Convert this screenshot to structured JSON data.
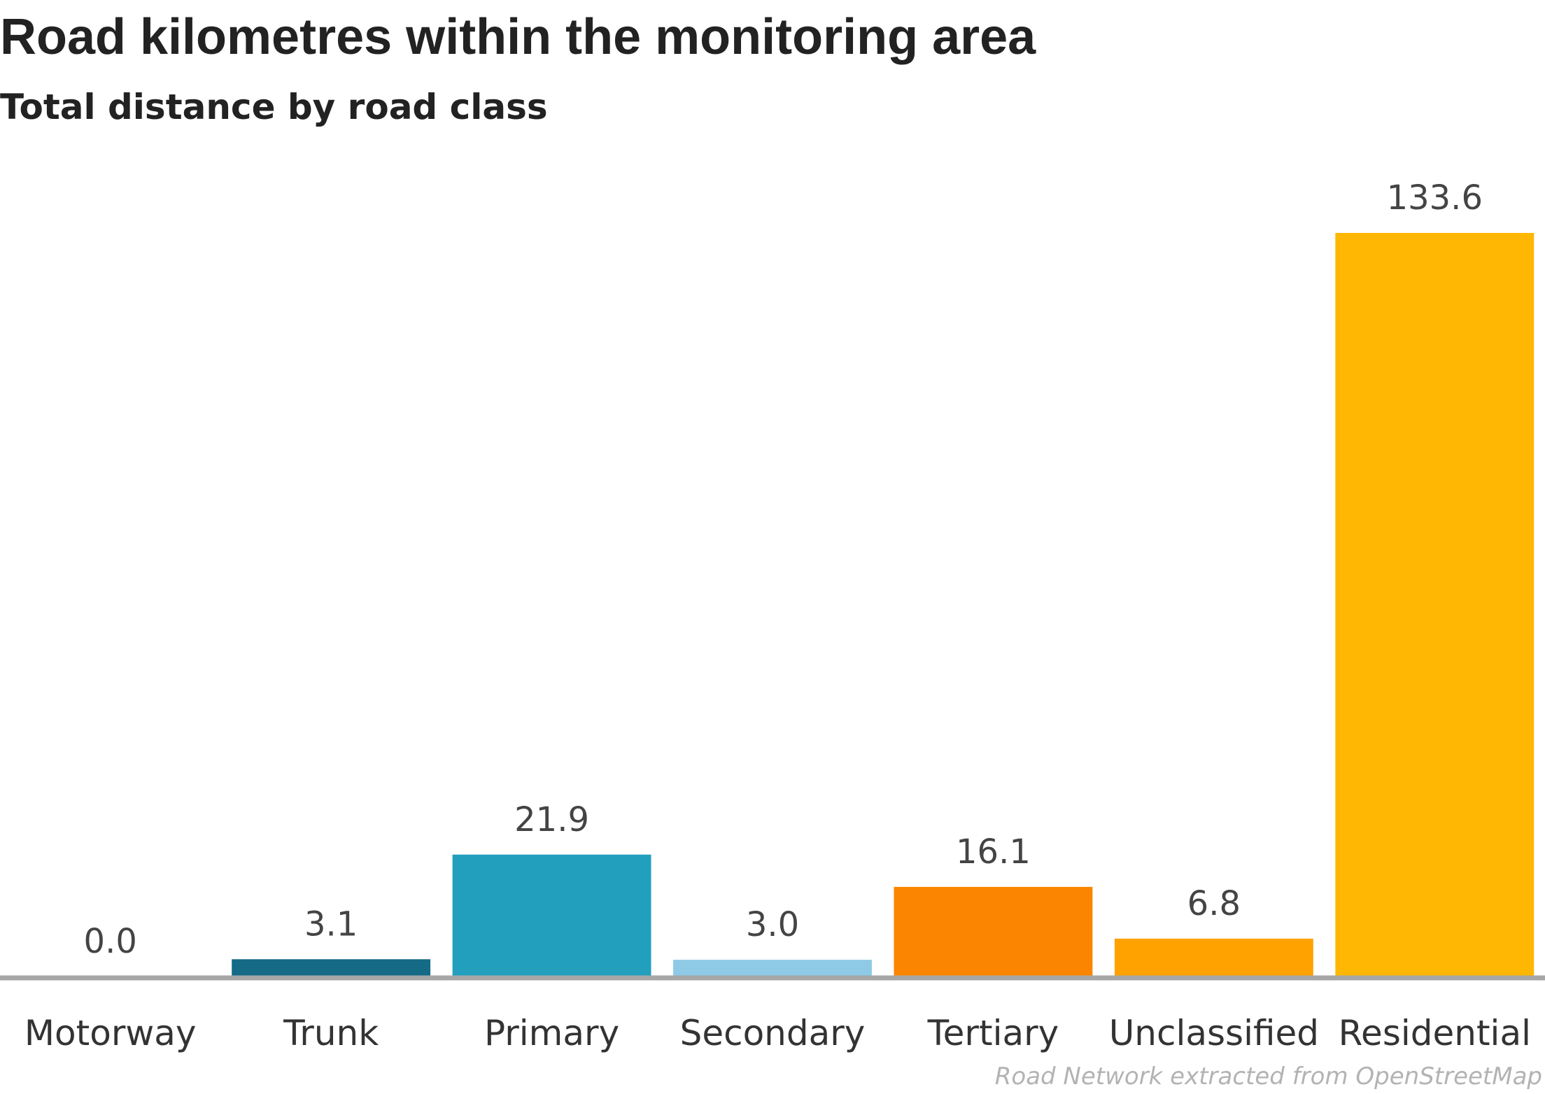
{
  "chart_data": {
    "type": "bar",
    "title": "Road kilometres within the monitoring area",
    "subtitle": "Total distance by road class",
    "caption": "Road Network extracted from OpenStreetMap",
    "categories": [
      "Motorway",
      "Trunk",
      "Primary",
      "Secondary",
      "Tertiary",
      "Unclassified",
      "Residential"
    ],
    "values": [
      0.0,
      3.1,
      21.9,
      3.0,
      16.1,
      6.8,
      133.6
    ],
    "value_labels": [
      "0.0",
      "3.1",
      "21.9",
      "3.0",
      "16.1",
      "6.8",
      "133.6"
    ],
    "colors": [
      "#0b3c5d",
      "#156a86",
      "#239fbe",
      "#8ecae6",
      "#fb8500",
      "#ffa200",
      "#ffb703"
    ],
    "baseline_color": "#a6a6a6",
    "xlabel": "",
    "ylabel": "",
    "ylim": [
      0,
      133.6
    ],
    "grid": false,
    "legend": "none"
  }
}
